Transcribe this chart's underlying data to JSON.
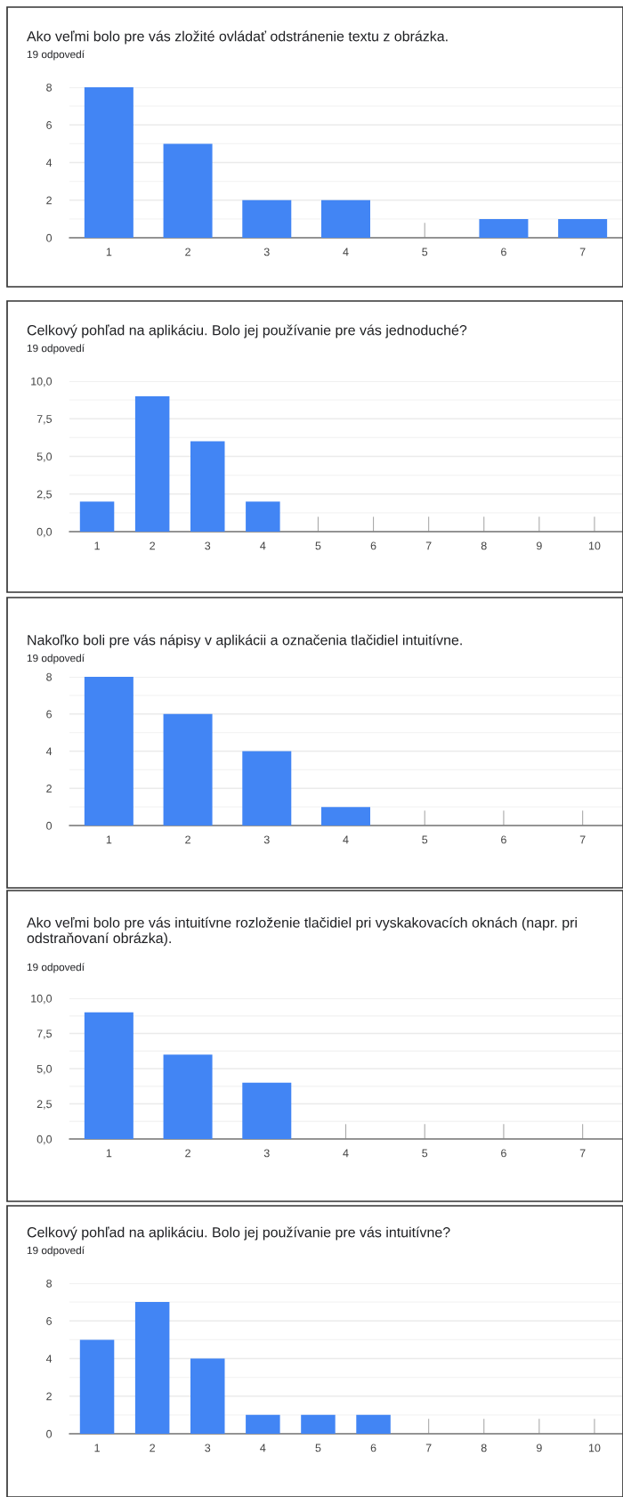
{
  "chart_data": [
    {
      "type": "bar",
      "title": "Ako veľmi bolo pre vás zložité ovládať odstránenie textu z obrázka.",
      "subtitle": "19 odpovedí",
      "categories": [
        "1",
        "2",
        "3",
        "4",
        "5",
        "6",
        "7"
      ],
      "values": [
        8,
        5,
        2,
        2,
        0,
        1,
        1
      ],
      "color": "#4285f4",
      "ylim": [
        0,
        8
      ],
      "yticks": [
        0,
        2,
        4,
        6,
        8
      ],
      "grid": "y",
      "legend": false
    },
    {
      "type": "bar",
      "title": "Celkový pohľad na aplikáciu. Bolo jej používanie pre vás jednoduché?",
      "subtitle": "19 odpovedí",
      "categories": [
        "1",
        "2",
        "3",
        "4",
        "5",
        "6",
        "7",
        "8",
        "9",
        "10"
      ],
      "values": [
        2,
        9,
        6,
        2,
        0,
        0,
        0,
        0,
        0,
        0
      ],
      "color": "#4285f4",
      "ylim": [
        0,
        10
      ],
      "yticks": [
        {
          "value": 0,
          "label": "0,0"
        },
        {
          "value": 2.5,
          "label": "2,5"
        },
        {
          "value": 5,
          "label": "5,0"
        },
        {
          "value": 7.5,
          "label": "7,5"
        },
        {
          "value": 10,
          "label": "10,0"
        }
      ],
      "grid": "y",
      "legend": false
    },
    {
      "type": "bar",
      "title": "Nakoľko boli pre vás nápisy v aplikácii a označenia tlačidiel intuitívne.",
      "subtitle": "19 odpovedí",
      "categories": [
        "1",
        "2",
        "3",
        "4",
        "5",
        "6",
        "7"
      ],
      "values": [
        8,
        6,
        4,
        1,
        0,
        0,
        0
      ],
      "color": "#4285f4",
      "ylim": [
        0,
        8
      ],
      "yticks": [
        0,
        2,
        4,
        6,
        8
      ],
      "grid": "y",
      "legend": false
    },
    {
      "type": "bar",
      "title": "Ako veľmi bolo pre vás intuitívne rozloženie tlačidiel pri vyskakovacích oknách (napr. pri odstraňovaní obrázka).",
      "subtitle": "19 odpovedí",
      "categories": [
        "1",
        "2",
        "3",
        "4",
        "5",
        "6",
        "7"
      ],
      "values": [
        9,
        6,
        4,
        0,
        0,
        0,
        0
      ],
      "color": "#4285f4",
      "ylim": [
        0,
        10
      ],
      "yticks": [
        {
          "value": 0,
          "label": "0,0"
        },
        {
          "value": 2.5,
          "label": "2,5"
        },
        {
          "value": 5,
          "label": "5,0"
        },
        {
          "value": 7.5,
          "label": "7,5"
        },
        {
          "value": 10,
          "label": "10,0"
        }
      ],
      "grid": "y",
      "legend": false
    },
    {
      "type": "bar",
      "title": "Celkový pohľad na aplikáciu. Bolo jej používanie pre vás intuitívne?",
      "subtitle": "19 odpovedí",
      "categories": [
        "1",
        "2",
        "3",
        "4",
        "5",
        "6",
        "7",
        "8",
        "9",
        "10"
      ],
      "values": [
        5,
        7,
        4,
        1,
        1,
        1,
        0,
        0,
        0,
        0
      ],
      "color": "#4285f4",
      "ylim": [
        0,
        8
      ],
      "yticks": [
        0,
        2,
        4,
        6,
        8
      ],
      "grid": "y",
      "legend": false
    }
  ]
}
